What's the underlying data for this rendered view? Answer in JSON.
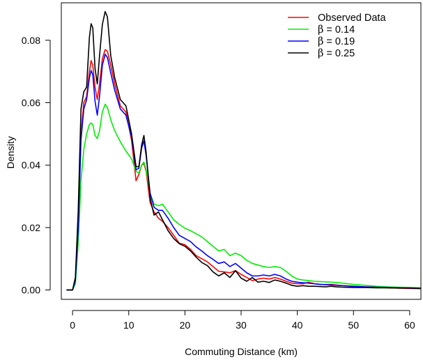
{
  "chart_data": {
    "type": "line",
    "title": "",
    "xlabel": "Commuting Distance (km)",
    "ylabel": "Density",
    "xlim": [
      -2,
      62
    ],
    "ylim": [
      -0.003,
      0.092
    ],
    "x_ticks": [
      0,
      10,
      20,
      30,
      40,
      50,
      60
    ],
    "x_tick_labels": [
      "0",
      "10",
      "20",
      "30",
      "40",
      "50",
      "60"
    ],
    "y_ticks": [
      0.0,
      0.02,
      0.04,
      0.06,
      0.08
    ],
    "y_tick_labels": [
      "0.00",
      "0.02",
      "0.04",
      "0.06",
      "0.08"
    ],
    "grid": false,
    "legend_position": "top-right",
    "series": [
      {
        "name": "Observed Data",
        "legend_prefix": "",
        "legend_value": "Observed Data",
        "color": "#ff0000",
        "points": [
          [
            -1,
            0
          ],
          [
            0,
            0
          ],
          [
            0.5,
            0.003
          ],
          [
            1,
            0.02
          ],
          [
            1.5,
            0.05
          ],
          [
            2,
            0.06
          ],
          [
            2.5,
            0.062
          ],
          [
            3,
            0.07
          ],
          [
            3.3,
            0.0735
          ],
          [
            3.6,
            0.072
          ],
          [
            4,
            0.065
          ],
          [
            4.4,
            0.061
          ],
          [
            4.8,
            0.066
          ],
          [
            5.3,
            0.074
          ],
          [
            5.8,
            0.077
          ],
          [
            6.2,
            0.0765
          ],
          [
            6.8,
            0.072
          ],
          [
            7.5,
            0.066
          ],
          [
            8.5,
            0.059
          ],
          [
            9.5,
            0.057
          ],
          [
            10.5,
            0.048
          ],
          [
            11.3,
            0.035
          ],
          [
            11.8,
            0.037
          ],
          [
            12.3,
            0.04
          ],
          [
            12.7,
            0.0405
          ],
          [
            13.1,
            0.038
          ],
          [
            13.8,
            0.028
          ],
          [
            14.5,
            0.025
          ],
          [
            15.3,
            0.023
          ],
          [
            16,
            0.022
          ],
          [
            17,
            0.02
          ],
          [
            18,
            0.0175
          ],
          [
            19,
            0.015
          ],
          [
            20,
            0.0145
          ],
          [
            21,
            0.013
          ],
          [
            22,
            0.011
          ],
          [
            23,
            0.01
          ],
          [
            24,
            0.009
          ],
          [
            25,
            0.0075
          ],
          [
            26,
            0.006
          ],
          [
            27,
            0.0058
          ],
          [
            28,
            0.0055
          ],
          [
            29,
            0.0062
          ],
          [
            30,
            0.005
          ],
          [
            31,
            0.004
          ],
          [
            32,
            0.003
          ],
          [
            33,
            0.0035
          ],
          [
            34,
            0.0038
          ],
          [
            35,
            0.0035
          ],
          [
            36,
            0.004
          ],
          [
            37,
            0.0035
          ],
          [
            38,
            0.0028
          ],
          [
            39,
            0.0022
          ],
          [
            40,
            0.002
          ],
          [
            41,
            0.002
          ],
          [
            42,
            0.0025
          ],
          [
            43,
            0.002
          ],
          [
            44,
            0.0018
          ],
          [
            45,
            0.0017
          ],
          [
            46,
            0.0018
          ],
          [
            47,
            0.0016
          ],
          [
            48,
            0.0014
          ],
          [
            50,
            0.0012
          ],
          [
            52,
            0.001
          ],
          [
            54,
            0.0009
          ],
          [
            56,
            0.0007
          ],
          [
            58,
            0.0006
          ],
          [
            60,
            0.0005
          ],
          [
            62,
            0.0004
          ]
        ]
      },
      {
        "name": "β = 0.14",
        "legend_prefix": "β",
        "legend_value": " = 0.14",
        "color": "#00ee00",
        "points": [
          [
            -1,
            0
          ],
          [
            0,
            0
          ],
          [
            0.5,
            0.002
          ],
          [
            1,
            0.015
          ],
          [
            1.5,
            0.035
          ],
          [
            2,
            0.045
          ],
          [
            2.5,
            0.05
          ],
          [
            3,
            0.053
          ],
          [
            3.3,
            0.0535
          ],
          [
            3.6,
            0.053
          ],
          [
            4,
            0.0495
          ],
          [
            4.4,
            0.0485
          ],
          [
            4.8,
            0.051
          ],
          [
            5.3,
            0.057
          ],
          [
            5.8,
            0.0595
          ],
          [
            6.2,
            0.0585
          ],
          [
            6.8,
            0.0545
          ],
          [
            7.5,
            0.051
          ],
          [
            8.5,
            0.0475
          ],
          [
            9.5,
            0.0445
          ],
          [
            10.5,
            0.042
          ],
          [
            11.3,
            0.038
          ],
          [
            11.8,
            0.0375
          ],
          [
            12.3,
            0.04
          ],
          [
            12.7,
            0.041
          ],
          [
            13.1,
            0.0385
          ],
          [
            13.8,
            0.031
          ],
          [
            14.5,
            0.0275
          ],
          [
            15.3,
            0.027
          ],
          [
            16,
            0.0275
          ],
          [
            17,
            0.025
          ],
          [
            18,
            0.0225
          ],
          [
            19,
            0.021
          ],
          [
            20,
            0.0198
          ],
          [
            21,
            0.019
          ],
          [
            22,
            0.018
          ],
          [
            23,
            0.017
          ],
          [
            24,
            0.0155
          ],
          [
            25,
            0.014
          ],
          [
            26,
            0.0125
          ],
          [
            27,
            0.013
          ],
          [
            28,
            0.011
          ],
          [
            29,
            0.0118
          ],
          [
            30,
            0.011
          ],
          [
            31,
            0.0095
          ],
          [
            32,
            0.0085
          ],
          [
            33,
            0.008
          ],
          [
            34,
            0.0075
          ],
          [
            35,
            0.0072
          ],
          [
            36,
            0.0075
          ],
          [
            37,
            0.0072
          ],
          [
            38,
            0.006
          ],
          [
            39,
            0.0045
          ],
          [
            40,
            0.0035
          ],
          [
            41,
            0.0032
          ],
          [
            42,
            0.003
          ],
          [
            43,
            0.0028
          ],
          [
            44,
            0.0027
          ],
          [
            45,
            0.0026
          ],
          [
            46,
            0.0025
          ],
          [
            47,
            0.0024
          ],
          [
            48,
            0.0022
          ],
          [
            50,
            0.0018
          ],
          [
            52,
            0.0015
          ],
          [
            54,
            0.0012
          ],
          [
            56,
            0.001
          ],
          [
            58,
            0.0009
          ],
          [
            60,
            0.0008
          ],
          [
            62,
            0.0007
          ]
        ]
      },
      {
        "name": "β = 0.19",
        "legend_prefix": "β",
        "legend_value": " = 0.19",
        "color": "#0000ff",
        "points": [
          [
            -1,
            0
          ],
          [
            0,
            0
          ],
          [
            0.5,
            0.003
          ],
          [
            1,
            0.019
          ],
          [
            1.5,
            0.048
          ],
          [
            2,
            0.058
          ],
          [
            2.5,
            0.061
          ],
          [
            3,
            0.068
          ],
          [
            3.3,
            0.0703
          ],
          [
            3.6,
            0.069
          ],
          [
            4,
            0.0605
          ],
          [
            4.4,
            0.056
          ],
          [
            4.8,
            0.062
          ],
          [
            5.3,
            0.072
          ],
          [
            5.8,
            0.0755
          ],
          [
            6.2,
            0.0745
          ],
          [
            6.8,
            0.0695
          ],
          [
            7.5,
            0.064
          ],
          [
            8.5,
            0.058
          ],
          [
            9.5,
            0.056
          ],
          [
            10.5,
            0.049
          ],
          [
            11.3,
            0.0385
          ],
          [
            11.8,
            0.039
          ],
          [
            12.3,
            0.0455
          ],
          [
            12.7,
            0.0478
          ],
          [
            13.1,
            0.043
          ],
          [
            13.8,
            0.031
          ],
          [
            14.5,
            0.0265
          ],
          [
            15.3,
            0.0255
          ],
          [
            16,
            0.0255
          ],
          [
            17,
            0.023
          ],
          [
            18,
            0.02
          ],
          [
            19,
            0.0175
          ],
          [
            20,
            0.0165
          ],
          [
            21,
            0.0155
          ],
          [
            22,
            0.0138
          ],
          [
            23,
            0.0125
          ],
          [
            24,
            0.011
          ],
          [
            25,
            0.0098
          ],
          [
            26,
            0.0085
          ],
          [
            27,
            0.009
          ],
          [
            28,
            0.0075
          ],
          [
            29,
            0.0085
          ],
          [
            30,
            0.007
          ],
          [
            31,
            0.0055
          ],
          [
            32,
            0.0045
          ],
          [
            33,
            0.0045
          ],
          [
            34,
            0.0048
          ],
          [
            35,
            0.0045
          ],
          [
            36,
            0.005
          ],
          [
            37,
            0.0045
          ],
          [
            38,
            0.0035
          ],
          [
            39,
            0.0028
          ],
          [
            40,
            0.0025
          ],
          [
            41,
            0.0023
          ],
          [
            42,
            0.0022
          ],
          [
            43,
            0.002
          ],
          [
            44,
            0.0018
          ],
          [
            45,
            0.0017
          ],
          [
            46,
            0.0016
          ],
          [
            47,
            0.0015
          ],
          [
            48,
            0.0014
          ],
          [
            50,
            0.0012
          ],
          [
            52,
            0.001
          ],
          [
            54,
            0.0009
          ],
          [
            56,
            0.0008
          ],
          [
            58,
            0.0007
          ],
          [
            60,
            0.0006
          ],
          [
            62,
            0.0005
          ]
        ]
      },
      {
        "name": "β = 0.25",
        "legend_prefix": "β",
        "legend_value": " = 0.25",
        "color": "#000000",
        "points": [
          [
            -1,
            0
          ],
          [
            0,
            0
          ],
          [
            0.5,
            0.004
          ],
          [
            1,
            0.025
          ],
          [
            1.5,
            0.058
          ],
          [
            2,
            0.0635
          ],
          [
            2.5,
            0.065
          ],
          [
            3,
            0.081
          ],
          [
            3.3,
            0.0853
          ],
          [
            3.6,
            0.084
          ],
          [
            4,
            0.071
          ],
          [
            4.4,
            0.066
          ],
          [
            4.8,
            0.075
          ],
          [
            5.3,
            0.085
          ],
          [
            5.8,
            0.0892
          ],
          [
            6.2,
            0.0875
          ],
          [
            6.8,
            0.075
          ],
          [
            7.5,
            0.068
          ],
          [
            8.5,
            0.061
          ],
          [
            9.5,
            0.059
          ],
          [
            10.5,
            0.05
          ],
          [
            11.3,
            0.0395
          ],
          [
            11.8,
            0.0395
          ],
          [
            12.3,
            0.0465
          ],
          [
            12.7,
            0.0495
          ],
          [
            13.1,
            0.044
          ],
          [
            13.8,
            0.0295
          ],
          [
            14.5,
            0.024
          ],
          [
            15.3,
            0.025
          ],
          [
            16,
            0.0225
          ],
          [
            17,
            0.019
          ],
          [
            18,
            0.0165
          ],
          [
            19,
            0.0148
          ],
          [
            20,
            0.014
          ],
          [
            21,
            0.0125
          ],
          [
            22,
            0.0105
          ],
          [
            23,
            0.0088
          ],
          [
            24,
            0.0078
          ],
          [
            25,
            0.0058
          ],
          [
            26,
            0.0045
          ],
          [
            27,
            0.0055
          ],
          [
            28,
            0.004
          ],
          [
            29,
            0.0062
          ],
          [
            30,
            0.0038
          ],
          [
            31,
            0.0028
          ],
          [
            32,
            0.004
          ],
          [
            33,
            0.0025
          ],
          [
            34,
            0.0028
          ],
          [
            35,
            0.0024
          ],
          [
            36,
            0.0032
          ],
          [
            37,
            0.0028
          ],
          [
            38,
            0.0022
          ],
          [
            39,
            0.0015
          ],
          [
            40,
            0.0012
          ],
          [
            41,
            0.0014
          ],
          [
            42,
            0.0012
          ],
          [
            43,
            0.0012
          ],
          [
            44,
            0.0011
          ],
          [
            45,
            0.001
          ],
          [
            46,
            0.0012
          ],
          [
            47,
            0.001
          ],
          [
            48,
            0.0009
          ],
          [
            50,
            0.0008
          ],
          [
            52,
            0.0008
          ],
          [
            54,
            0.0007
          ],
          [
            56,
            0.0007
          ],
          [
            58,
            0.0006
          ],
          [
            60,
            0.0006
          ],
          [
            62,
            0.0005
          ]
        ]
      }
    ]
  }
}
